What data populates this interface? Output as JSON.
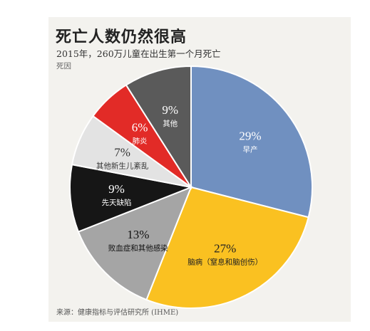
{
  "title": "死亡人数仍然很高",
  "subtitle": "2015年，260万儿童在出生第一个月死亡",
  "unit_label": "死因",
  "source": "来源：健康指标与评估研究所 (IHME)",
  "colors": {
    "background": "#f3f2ee",
    "slice_blue": "#7090c0",
    "slice_yellow": "#fac121",
    "slice_grey": "#a5a5a5",
    "slice_black": "#161616",
    "slice_light": "#e3e3e3",
    "slice_red": "#e22b27",
    "slice_dark": "#5a5a5a"
  },
  "chart_data": {
    "type": "pie",
    "title": "死亡人数仍然很高",
    "subtitle": "2015年，260万儿童在出生第一个月死亡",
    "slices": [
      {
        "label": "早产",
        "pct_label": "29%",
        "value": 29,
        "color": "#7090c0",
        "text_color": "#ffffff"
      },
      {
        "label": "脑病（窒息和脑创伤）",
        "pct_label": "27%",
        "value": 27,
        "color": "#fac121",
        "text_color": "#222222"
      },
      {
        "label": "败血症和其他感染",
        "pct_label": "13%",
        "value": 13,
        "color": "#a5a5a5",
        "text_color": "#111111"
      },
      {
        "label": "先天缺陷",
        "pct_label": "9%",
        "value": 9,
        "color": "#161616",
        "text_color": "#ffffff"
      },
      {
        "label": "其他新生儿紊乱",
        "pct_label": "7%",
        "value": 7,
        "color": "#e3e3e3",
        "text_color": "#333333"
      },
      {
        "label": "肺炎",
        "pct_label": "6%",
        "value": 6,
        "color": "#e22b27",
        "text_color": "#ffffff"
      },
      {
        "label": "其他",
        "pct_label": "9%",
        "value": 9,
        "color": "#5a5a5a",
        "text_color": "#ffffff"
      }
    ]
  }
}
